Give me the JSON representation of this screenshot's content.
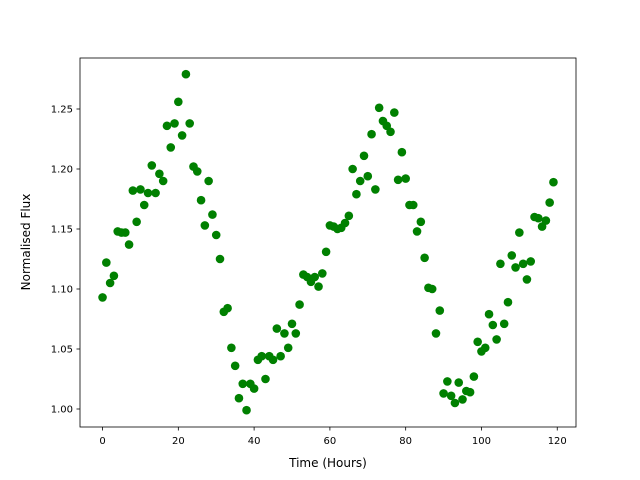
{
  "chart_data": {
    "type": "scatter",
    "xlabel": "Time (Hours)",
    "ylabel": "Normalised Flux",
    "x": [
      0,
      1,
      2,
      3,
      4,
      5,
      6,
      7,
      8,
      9,
      10,
      11,
      12,
      13,
      14,
      15,
      16,
      17,
      18,
      19,
      20,
      21,
      22,
      23,
      24,
      25,
      26,
      27,
      28,
      29,
      30,
      31,
      32,
      33,
      34,
      35,
      36,
      37,
      38,
      39,
      40,
      41,
      42,
      43,
      44,
      45,
      46,
      47,
      48,
      49,
      50,
      51,
      52,
      53,
      54,
      55,
      56,
      57,
      58,
      59,
      60,
      61,
      62,
      63,
      64,
      65,
      66,
      67,
      68,
      69,
      70,
      71,
      72,
      73,
      74,
      75,
      76,
      77,
      78,
      79,
      80,
      81,
      82,
      83,
      84,
      85,
      86,
      87,
      88,
      89,
      90,
      91,
      92,
      93,
      94,
      95,
      96,
      97,
      98,
      99,
      100,
      101,
      102,
      103,
      104,
      105,
      106,
      107,
      108,
      109,
      110,
      111,
      112,
      113,
      114,
      115,
      116,
      117,
      118,
      119
    ],
    "series": [
      {
        "color": "#008000",
        "values": [
          1.093,
          1.122,
          1.105,
          1.111,
          1.148,
          1.147,
          1.147,
          1.137,
          1.182,
          1.156,
          1.183,
          1.17,
          1.18,
          1.203,
          1.18,
          1.196,
          1.19,
          1.236,
          1.218,
          1.238,
          1.256,
          1.228,
          1.279,
          1.238,
          1.202,
          1.198,
          1.174,
          1.153,
          1.19,
          1.162,
          1.145,
          1.125,
          1.081,
          1.084,
          1.051,
          1.036,
          1.009,
          1.021,
          0.999,
          1.021,
          1.017,
          1.041,
          1.044,
          1.025,
          1.044,
          1.041,
          1.067,
          1.044,
          1.063,
          1.051,
          1.071,
          1.063,
          1.087,
          1.112,
          1.11,
          1.106,
          1.11,
          1.102,
          1.113,
          1.131,
          1.153,
          1.152,
          1.15,
          1.151,
          1.155,
          1.161,
          1.2,
          1.179,
          1.19,
          1.211,
          1.194,
          1.229,
          1.183,
          1.251,
          1.24,
          1.236,
          1.231,
          1.247,
          1.191,
          1.214,
          1.192,
          1.17,
          1.17,
          1.148,
          1.156,
          1.126,
          1.101,
          1.1,
          1.063,
          1.082,
          1.013,
          1.023,
          1.011,
          1.005,
          1.022,
          1.008,
          1.015,
          1.014,
          1.027,
          1.056,
          1.048,
          1.051,
          1.079,
          1.07,
          1.058,
          1.121,
          1.071,
          1.089,
          1.128,
          1.118,
          1.147,
          1.121,
          1.108,
          1.123,
          1.16,
          1.159,
          1.152,
          1.157,
          1.172,
          1.189
        ]
      }
    ],
    "xlim": [
      -5.95,
      124.95
    ],
    "xticks": [
      0,
      20,
      40,
      60,
      80,
      100,
      120
    ],
    "ylim": [
      0.985,
      1.2925
    ],
    "yticks": [
      {
        "value": 1,
        "label": "1.00"
      },
      1.05,
      {
        "value": 1.1,
        "label": "1.10"
      },
      1.15,
      {
        "value": 1.2,
        "label": "1.20"
      },
      1.25
    ],
    "grid": false
  }
}
